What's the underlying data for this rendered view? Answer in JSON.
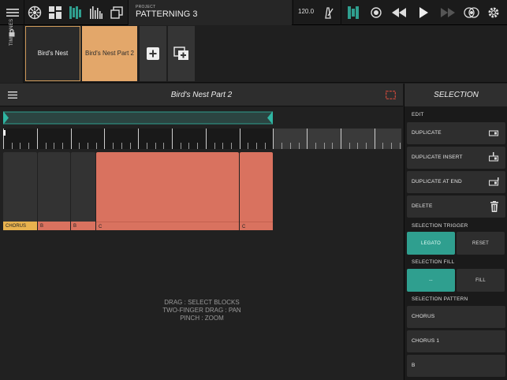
{
  "topbar": {
    "project_caption": "PROJECT",
    "project_name": "PATTERNING 3",
    "tempo": "120.0",
    "icons_left": [
      "menu-icon",
      "mixer-wheel-icon",
      "grid-blocks-icon",
      "patterns-icon",
      "tracks-icon",
      "copy-window-icon"
    ],
    "icons_right": [
      "metronome-icon",
      "pattern-toggle-icon",
      "record-icon",
      "rewind-icon",
      "play-icon",
      "fast-forward-icon",
      "link-icon",
      "settings-icon"
    ],
    "accent": "#2f9f8f"
  },
  "timelines": {
    "side_label": "TIMELINES",
    "cards": [
      {
        "label": "Bird's Nest",
        "selected": true
      },
      {
        "label": "Bird's Nest Part 2",
        "selected": false
      }
    ]
  },
  "editor": {
    "title": "Bird's Nest Part 2",
    "blocks": [
      {
        "label": "CHORUS"
      },
      {
        "label": "B"
      },
      {
        "label": "B"
      },
      {
        "label": "C"
      },
      {
        "label": "C"
      }
    ],
    "hint_lines": [
      "DRAG : SELECT BLOCKS",
      "TWO-FINGER DRAG : PAN",
      "PINCH : ZOOM"
    ],
    "block_color": "#d9725f",
    "block_dark": "#333333"
  },
  "selection": {
    "title": "SELECTION",
    "edit_label": "EDIT",
    "edit_buttons": [
      "DUPLICATE",
      "DUPLICATE INSERT",
      "DUPLICATE AT END",
      "DELETE"
    ],
    "trigger_label": "SELECTION TRIGGER",
    "trigger_options": [
      "LEGATO",
      "RESET"
    ],
    "fill_label": "SELECTION FILL",
    "fill_options": [
      "--",
      "FILL"
    ],
    "pattern_label": "SELECTION PATTERN",
    "patterns": [
      "CHORUS",
      "CHORUS 1",
      "B"
    ]
  }
}
